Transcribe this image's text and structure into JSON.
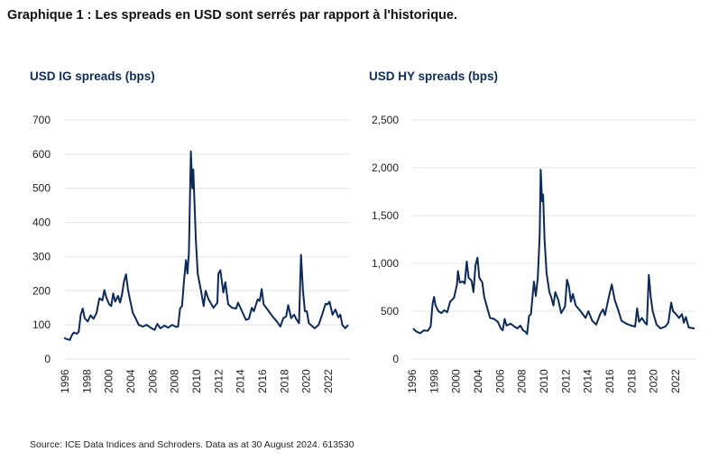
{
  "title": "Graphique 1 : Les spreads en USD sont serrés par rapport à l'historique.",
  "source": "Source: ICE Data Indices and Schroders. Data as at 30 August 2024. 613530",
  "line_color": "#0b2a57",
  "chart_data": [
    {
      "type": "line",
      "title": "USD IG spreads (bps)",
      "x_tick_labels": [
        "1996",
        "1998",
        "2000",
        "2004",
        "2006",
        "2008",
        "2010",
        "2012",
        "2014",
        "2016",
        "2018",
        "2020",
        "2022"
      ],
      "y_ticks": [
        0,
        100,
        200,
        300,
        400,
        500,
        600,
        700
      ],
      "y_tick_labels": [
        "0",
        "100",
        "200",
        "300",
        "400",
        "500",
        "600",
        "700"
      ],
      "ylim": [
        0,
        700
      ],
      "xlim": [
        1996.3,
        2025.2
      ],
      "grid": true,
      "x": [
        1996.3,
        1996.6,
        1996.9,
        1997.1,
        1997.3,
        1997.6,
        1997.8,
        1998.0,
        1998.2,
        1998.4,
        1998.7,
        1999.0,
        1999.3,
        1999.6,
        1999.9,
        2000.2,
        2000.4,
        2000.6,
        2000.9,
        2001.1,
        2001.3,
        2001.5,
        2001.8,
        2002.0,
        2002.2,
        2002.4,
        2002.6,
        2002.8,
        2003.0,
        2003.3,
        2003.6,
        2003.9,
        2004.3,
        2004.7,
        2005.2,
        2005.5,
        2005.8,
        2006.1,
        2006.5,
        2006.9,
        2007.3,
        2007.7,
        2007.9,
        2008.1,
        2008.3,
        2008.5,
        2008.7,
        2008.85,
        2009.0,
        2009.2,
        2009.35,
        2009.45,
        2009.7,
        2009.9,
        2010.2,
        2010.5,
        2010.7,
        2011.0,
        2011.5,
        2011.9,
        2012.0,
        2012.2,
        2012.5,
        2012.7,
        2013.0,
        2013.4,
        2013.8,
        2014.0,
        2014.4,
        2014.8,
        2015.1,
        2015.4,
        2015.6,
        2016.0,
        2016.2,
        2016.4,
        2016.6,
        2017.0,
        2017.5,
        2018.0,
        2018.3,
        2018.6,
        2018.9,
        2019.1,
        2019.4,
        2019.7,
        2019.9,
        2020.2,
        2020.4,
        2020.6,
        2020.8,
        2021.0,
        2021.2,
        2021.8,
        2022.2,
        2022.6,
        2022.9,
        2023.1,
        2023.3,
        2023.6,
        2023.9,
        2024.2,
        2024.4,
        2024.6,
        2024.9,
        2025.2
      ],
      "y": [
        62,
        58,
        56,
        70,
        78,
        74,
        80,
        130,
        148,
        120,
        110,
        128,
        118,
        135,
        178,
        172,
        202,
        180,
        160,
        155,
        192,
        168,
        185,
        165,
        190,
        228,
        248,
        205,
        175,
        135,
        118,
        100,
        95,
        100,
        90,
        85,
        103,
        90,
        98,
        92,
        100,
        94,
        95,
        148,
        155,
        230,
        290,
        250,
        310,
        608,
        500,
        555,
        350,
        250,
        205,
        155,
        200,
        175,
        150,
        165,
        250,
        260,
        195,
        225,
        160,
        150,
        148,
        165,
        140,
        115,
        118,
        150,
        140,
        175,
        170,
        205,
        160,
        145,
        125,
        108,
        95,
        120,
        125,
        158,
        120,
        130,
        118,
        105,
        305,
        200,
        140,
        140,
        105,
        90,
        100,
        135,
        162,
        160,
        168,
        130,
        145,
        122,
        130,
        100,
        90,
        100
      ]
    },
    {
      "type": "line",
      "title": "USD HY spreads (bps)",
      "x_tick_labels": [
        "1996",
        "1998",
        "2000",
        "2004",
        "2006",
        "2008",
        "2010",
        "2012",
        "2014",
        "2016",
        "2018",
        "2020",
        "2022"
      ],
      "y_ticks": [
        0,
        500,
        1000,
        1500,
        2000,
        2500
      ],
      "y_tick_labels": [
        "0",
        "500",
        "1,000",
        "1,500",
        "2,000",
        "2,500"
      ],
      "ylim": [
        0,
        2500
      ],
      "xlim": [
        1996.3,
        2025.2
      ],
      "grid": true,
      "x": [
        1996.3,
        1996.6,
        1997.0,
        1997.4,
        1997.8,
        1998.1,
        1998.3,
        1998.45,
        1998.6,
        1998.9,
        1999.2,
        1999.5,
        1999.8,
        2000.1,
        2000.5,
        2000.8,
        2000.9,
        2001.1,
        2001.4,
        2001.6,
        2001.8,
        2002.0,
        2002.3,
        2002.5,
        2002.7,
        2002.9,
        2003.1,
        2003.4,
        2003.6,
        2003.9,
        2004.2,
        2004.6,
        2005.0,
        2005.3,
        2005.5,
        2005.7,
        2005.9,
        2006.3,
        2006.7,
        2007.0,
        2007.3,
        2007.6,
        2007.9,
        2008.0,
        2008.2,
        2008.4,
        2008.7,
        2008.9,
        2009.1,
        2009.3,
        2009.4,
        2009.55,
        2009.65,
        2009.8,
        2010.0,
        2010.3,
        2010.5,
        2010.7,
        2010.9,
        2011.2,
        2011.5,
        2011.9,
        2012.1,
        2012.3,
        2012.5,
        2012.7,
        2013.0,
        2013.5,
        2014.0,
        2014.3,
        2014.7,
        2015.1,
        2015.5,
        2015.8,
        2016.0,
        2016.4,
        2016.7,
        2017.0,
        2017.4,
        2017.7,
        2018.2,
        2018.7,
        2019.1,
        2019.3,
        2019.5,
        2019.8,
        2020.1,
        2020.3,
        2020.5,
        2020.7,
        2020.9,
        2021.3,
        2021.7,
        2022.2,
        2022.5,
        2022.8,
        2023.0,
        2023.3,
        2023.6,
        2023.9,
        2024.1,
        2024.3,
        2024.6,
        2025.2
      ],
      "y": [
        320,
        290,
        270,
        300,
        295,
        340,
        580,
        650,
        560,
        500,
        480,
        510,
        490,
        600,
        640,
        780,
        920,
        800,
        810,
        790,
        1020,
        850,
        820,
        700,
        980,
        1060,
        850,
        800,
        650,
        540,
        430,
        420,
        390,
        320,
        300,
        420,
        350,
        370,
        340,
        320,
        350,
        300,
        280,
        260,
        450,
        470,
        810,
        660,
        850,
        1300,
        1980,
        1650,
        1720,
        1250,
        900,
        700,
        640,
        560,
        700,
        620,
        480,
        550,
        830,
        760,
        600,
        680,
        560,
        500,
        430,
        500,
        400,
        360,
        470,
        520,
        460,
        650,
        780,
        620,
        500,
        400,
        370,
        350,
        340,
        530,
        390,
        430,
        380,
        360,
        880,
        650,
        500,
        360,
        320,
        340,
        380,
        590,
        500,
        470,
        430,
        470,
        380,
        440,
        330,
        320
      ]
    }
  ]
}
